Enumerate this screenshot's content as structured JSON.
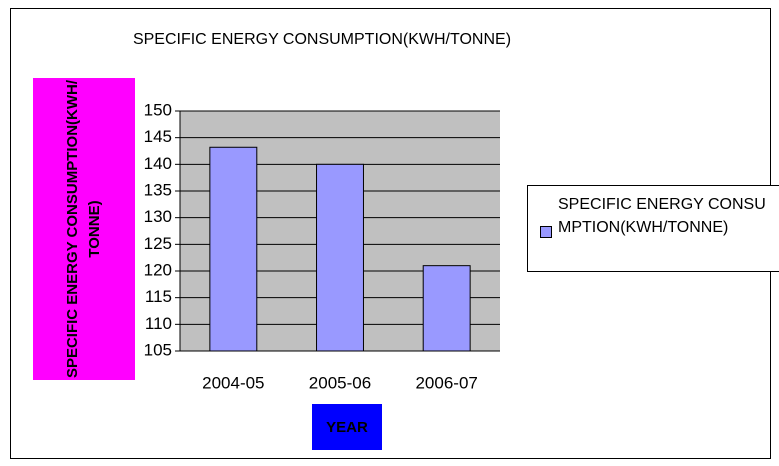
{
  "chart_data": {
    "type": "bar",
    "title": "SPECIFIC ENERGY  CONSUMPTION(KWH/TONNE)",
    "x_label": "YEAR",
    "y_label": "SPECIFIC ENERGY CONSUMPTION(KWH/TONNE)",
    "categories": [
      "2004-05",
      "2005-06",
      "2006-07"
    ],
    "series": [
      {
        "name": "SPECIFIC ENERGY CONSUMPTION(KWH/TONNE)",
        "color": "#9999ff",
        "values": [
          143.2,
          140,
          121
        ]
      }
    ],
    "ylim": [
      105,
      150
    ],
    "yticks": [
      105,
      110,
      115,
      120,
      125,
      130,
      135,
      140,
      145,
      150
    ],
    "grid": true,
    "legend": "right"
  }
}
